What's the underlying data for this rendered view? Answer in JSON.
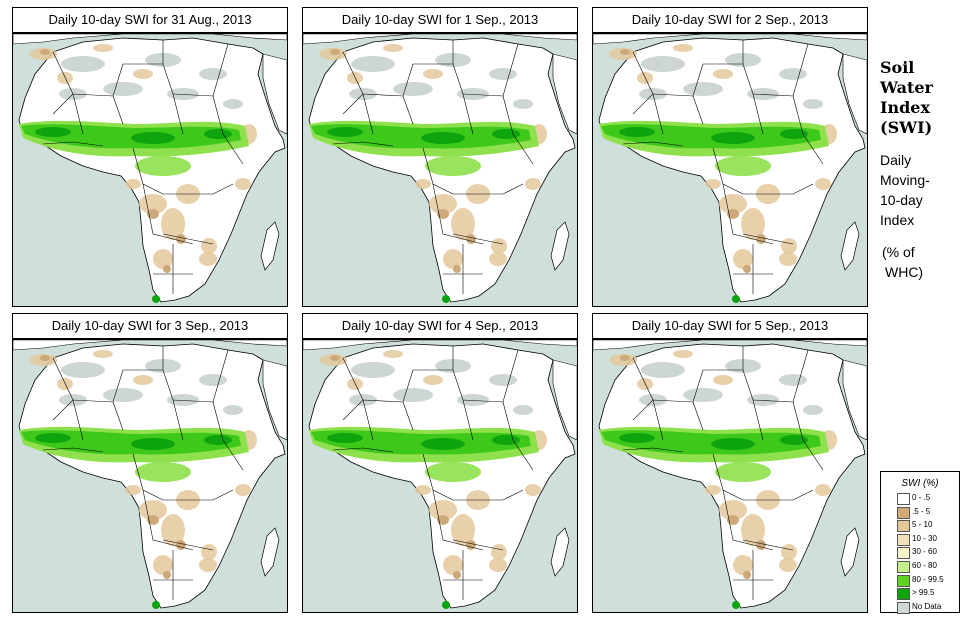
{
  "panels": [
    {
      "title": "Daily 10-day SWI for  31 Aug., 2013"
    },
    {
      "title": "Daily 10-day SWI for  1 Sep., 2013"
    },
    {
      "title": "Daily 10-day SWI for  2 Sep., 2013"
    },
    {
      "title": "Daily 10-day SWI for  3 Sep., 2013"
    },
    {
      "title": "Daily 10-day SWI for  4 Sep., 2013"
    },
    {
      "title": "Daily 10-day SWI for  5 Sep., 2013"
    }
  ],
  "side": {
    "title_line1": "Soil",
    "title_line2": "Water",
    "title_line3": "Index",
    "title_line4": "(SWI)",
    "sub_line1": "Daily",
    "sub_line2": "Moving-",
    "sub_line3": "10-day",
    "sub_line4": "Index",
    "unit_line1": "(% of",
    "unit_line2": "WHC)"
  },
  "legend": {
    "title": "SWI (%)",
    "items": [
      {
        "label": "0 - .5",
        "color": "#ffffff"
      },
      {
        "label": ".5 - 5",
        "color": "#d2aa78"
      },
      {
        "label": "5 - 10",
        "color": "#e6c896"
      },
      {
        "label": "10 - 30",
        "color": "#f3e2b9"
      },
      {
        "label": "30 - 60",
        "color": "#f8f4cc"
      },
      {
        "label": "60 - 80",
        "color": "#c5ef8a"
      },
      {
        "label": "80 - 99.5",
        "color": "#5fd21e"
      },
      {
        "label": "> 99.5",
        "color": "#0ea40e"
      },
      {
        "label": "No Data",
        "color": "#cfd8d6"
      }
    ]
  },
  "colors": {
    "ocean": "#cfe0dc",
    "land": "#ffffff",
    "desert_nodata": "#c8d2d0",
    "dry_tan": "#e3c89b",
    "dark_tan": "#cda878",
    "light_green": "#8ee04c",
    "green": "#3ec81a",
    "dark_green": "#0ea40e",
    "border": "#000000"
  }
}
